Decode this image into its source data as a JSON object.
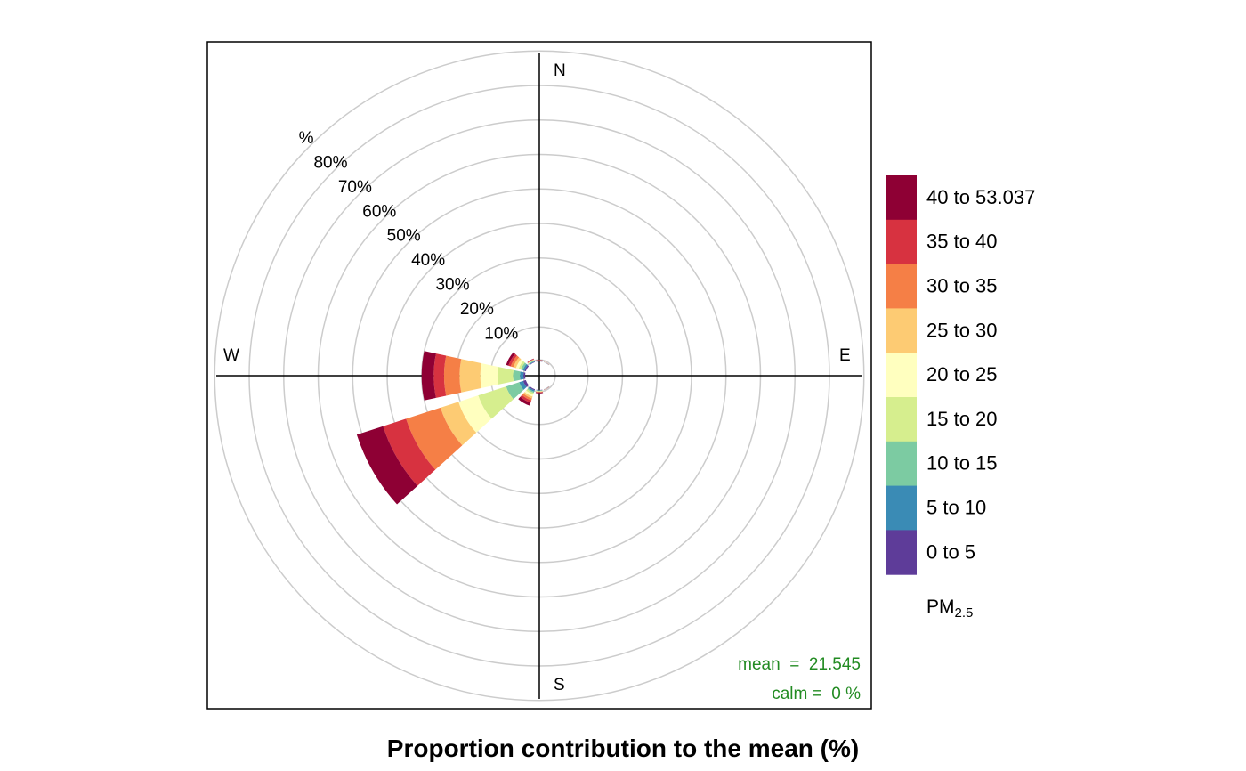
{
  "chart_data": {
    "type": "polar-stacked-bar",
    "title": "Proportion contribution to the mean (%)",
    "radial_unit": "%",
    "radial_ticks": [
      10,
      20,
      30,
      40,
      50,
      60,
      70,
      80,
      90
    ],
    "radial_tick_labels": [
      "10%",
      "20%",
      "30%",
      "40%",
      "50%",
      "60%",
      "70%",
      "80%",
      "%"
    ],
    "compass": {
      "north": "N",
      "east": "E",
      "south": "S",
      "west": "W"
    },
    "legend": {
      "title_main": "PM",
      "title_sub": "2.5",
      "placement": "right",
      "items": [
        {
          "label": "0 to 5",
          "color": "#5E3C99"
        },
        {
          "label": "5 to 10",
          "color": "#3A8BB5"
        },
        {
          "label": "10 to 15",
          "color": "#7CCBA2"
        },
        {
          "label": "15 to 20",
          "color": "#D6EE8E"
        },
        {
          "label": "20 to 25",
          "color": "#FFFFBF"
        },
        {
          "label": "25 to 30",
          "color": "#FDCB73"
        },
        {
          "label": "30 to 35",
          "color": "#F57F46"
        },
        {
          "label": "35 to 40",
          "color": "#D73240"
        },
        {
          "label": "40 to 53.037",
          "color": "#8E0034"
        }
      ]
    },
    "stats": {
      "mean_text": "mean  =  21.545",
      "calm_text": "calm =  0 %"
    },
    "stats_color": "#228B22",
    "grid": true,
    "axis_max": 90,
    "series": [
      {
        "direction_deg": 270,
        "cumulative": [
          0.5,
          1.5,
          3.5,
          8.0,
          13.0,
          19.0,
          23.5,
          26.5,
          30.0
        ]
      },
      {
        "direction_deg": 240,
        "cumulative": [
          0.8,
          2.0,
          6.0,
          14.5,
          20.5,
          26.0,
          36.5,
          43.5,
          51.5
        ]
      },
      {
        "direction_deg": 300,
        "cumulative": [
          0.4,
          0.9,
          1.5,
          2.2,
          3.0,
          3.8,
          4.6,
          5.3,
          6.0
        ]
      },
      {
        "direction_deg": 210,
        "cumulative": [
          0.3,
          0.7,
          1.1,
          1.6,
          2.2,
          2.8,
          3.4,
          4.1,
          5.0
        ]
      },
      {
        "direction_deg": 330,
        "cumulative": [
          0.15,
          0.3,
          0.5,
          0.6,
          0.7,
          0.8,
          0.9,
          1.0,
          1.1
        ]
      },
      {
        "direction_deg": 0,
        "cumulative": [
          0.05,
          0.1,
          0.15,
          0.2,
          0.25,
          0.3,
          0.35,
          0.4,
          0.45
        ]
      },
      {
        "direction_deg": 30,
        "cumulative": [
          0.05,
          0.08,
          0.1,
          0.12,
          0.14,
          0.16,
          0.18,
          0.2,
          0.22
        ]
      },
      {
        "direction_deg": 180,
        "cumulative": [
          0.1,
          0.2,
          0.3,
          0.4,
          0.5,
          0.6,
          0.7,
          0.8,
          1.0
        ]
      },
      {
        "direction_deg": 150,
        "cumulative": [
          0.05,
          0.08,
          0.1,
          0.12,
          0.14,
          0.16,
          0.18,
          0.2,
          0.25
        ]
      }
    ]
  }
}
